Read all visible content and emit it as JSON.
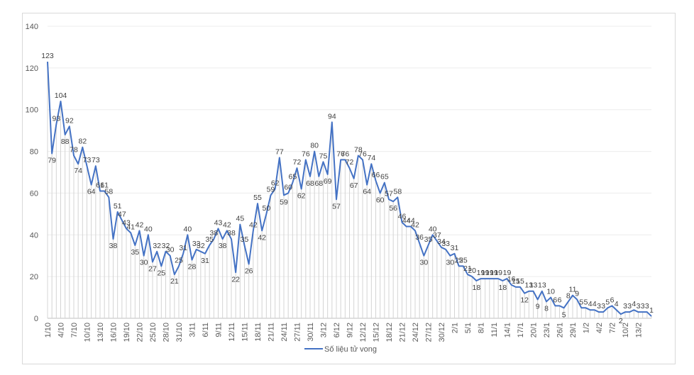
{
  "chart_data": {
    "type": "line",
    "title": "",
    "xlabel": "",
    "ylabel": "",
    "ylim": [
      0,
      140
    ],
    "yticks": [
      0,
      20,
      40,
      60,
      80,
      100,
      120,
      140
    ],
    "grid": true,
    "legend_position": "bottom",
    "series_color": "#4472c4",
    "x_tick_labels": [
      "1/10",
      "4/10",
      "7/10",
      "10/10",
      "13/10",
      "16/10",
      "19/10",
      "22/10",
      "25/10",
      "28/10",
      "31/10",
      "3/11",
      "6/11",
      "9/11",
      "12/11",
      "15/11",
      "18/11",
      "21/11",
      "24/11",
      "27/11",
      "30/11",
      "3/12",
      "6/12",
      "9/12",
      "12/12",
      "15/12",
      "18/12",
      "21/12",
      "24/12",
      "27/12",
      "30/12",
      "2/1",
      "5/1",
      "8/1",
      "11/1",
      "14/1",
      "17/1",
      "20/1",
      "23/1",
      "26/1",
      "29/1",
      "1/2",
      "4/2",
      "7/2",
      "10/2",
      "13/2"
    ],
    "series": [
      {
        "name": "Số liệu tử vong",
        "values": [
          123,
          79,
          93,
          104,
          88,
          92,
          78,
          74,
          82,
          73,
          64,
          73,
          61,
          61,
          58,
          38,
          51,
          47,
          43,
          41,
          35,
          42,
          30,
          40,
          27,
          32,
          25,
          32,
          30,
          21,
          25,
          31,
          40,
          28,
          33,
          32,
          31,
          35,
          38,
          43,
          38,
          42,
          38,
          22,
          45,
          35,
          26,
          42,
          55,
          42,
          50,
          59,
          62,
          77,
          59,
          60,
          65,
          72,
          62,
          76,
          68,
          80,
          68,
          75,
          69,
          94,
          57,
          76,
          76,
          72,
          67,
          78,
          76,
          64,
          74,
          66,
          60,
          65,
          57,
          56,
          58,
          46,
          44,
          44,
          42,
          36,
          30,
          35,
          40,
          37,
          34,
          33,
          30,
          31,
          25,
          25,
          21,
          20,
          18,
          19,
          19,
          19,
          19,
          19,
          18,
          19,
          16,
          15,
          15,
          12,
          13,
          13,
          9,
          13,
          8,
          10,
          6,
          6,
          5,
          8,
          11,
          9,
          5,
          5,
          4,
          4,
          3,
          3,
          5,
          6,
          4,
          2,
          3,
          3,
          4,
          3,
          3,
          3,
          1
        ]
      }
    ]
  }
}
